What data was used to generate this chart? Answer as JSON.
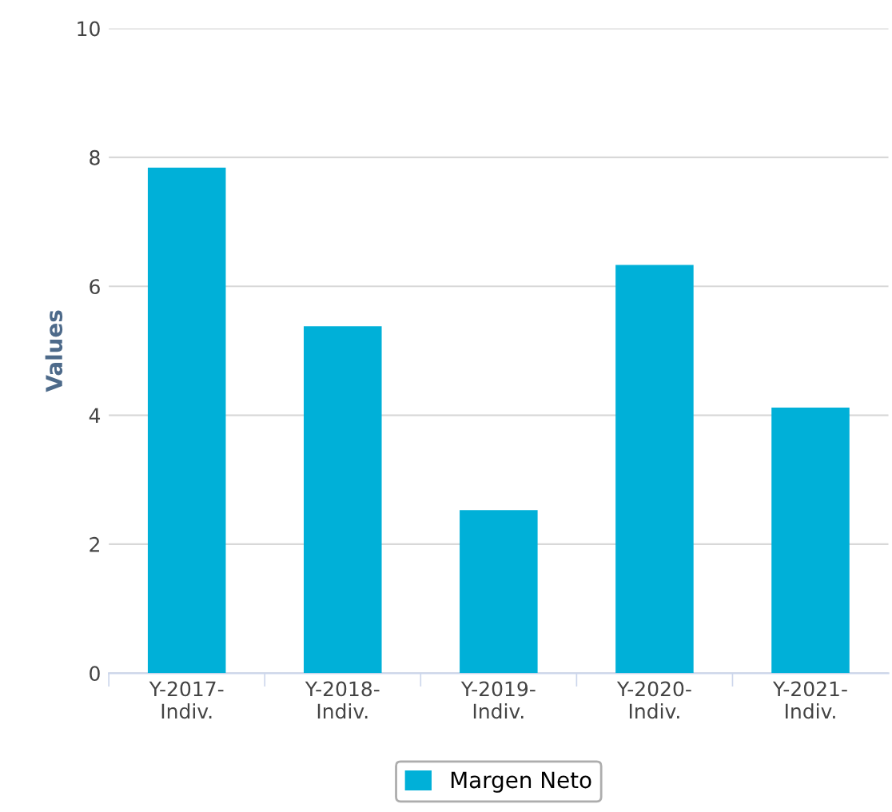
{
  "chart_data": {
    "type": "bar",
    "ylabel": "Values",
    "categories": [
      "Y-2017-\nIndiv.",
      "Y-2018-\nIndiv.",
      "Y-2019-\nIndiv.",
      "Y-2020-\nIndiv.",
      "Y-2021-\nIndiv."
    ],
    "series": [
      {
        "name": "Margen Neto",
        "color": "#00b0d8",
        "values": [
          7.84,
          5.38,
          2.53,
          6.33,
          4.12
        ]
      }
    ],
    "ylim": [
      0,
      10
    ],
    "yticks": [
      0,
      2,
      4,
      6,
      8,
      10
    ],
    "grid": "y",
    "legend": "bottom"
  }
}
